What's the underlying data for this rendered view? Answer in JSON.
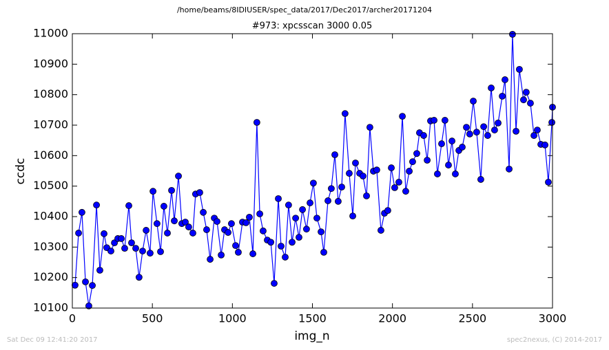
{
  "chart_data": {
    "type": "line",
    "suptitle": "/home/beams/8IDIUSER/spec_data/2017/Dec2017/archer20171204",
    "title": "#973: xpcsscan 3000 0.05",
    "xlabel": "img_n",
    "ylabel": "ccdc",
    "footer_left": "Sat Dec 09 12:41:20 2017",
    "footer_right": "spec2nexus, (C) 2014-2017",
    "xlim": [
      0,
      3000
    ],
    "xticks": [
      0,
      500,
      1000,
      1500,
      2000,
      2500,
      3000
    ],
    "ylim": [
      10100,
      11000
    ],
    "yticks": [
      10100,
      10200,
      10300,
      10400,
      10500,
      10600,
      10700,
      10800,
      10900,
      11000
    ],
    "grid": false,
    "series": [
      {
        "color": "#0000ff",
        "marker": "o",
        "x": [
          17,
          39,
          60,
          82,
          103,
          125,
          151,
          172,
          198,
          215,
          241,
          263,
          284,
          306,
          327,
          353,
          370,
          396,
          417,
          439,
          461,
          486,
          504,
          529,
          551,
          572,
          594,
          620,
          637,
          663,
          684,
          706,
          727,
          753,
          770,
          796,
          818,
          839,
          861,
          887,
          904,
          930,
          951,
          973,
          994,
          1020,
          1037,
          1063,
          1085,
          1106,
          1128,
          1153,
          1171,
          1192,
          1218,
          1240,
          1261,
          1287,
          1304,
          1330,
          1351,
          1373,
          1395,
          1416,
          1438,
          1463,
          1485,
          1506,
          1528,
          1554,
          1571,
          1597,
          1618,
          1640,
          1661,
          1683,
          1704,
          1730,
          1752,
          1769,
          1795,
          1816,
          1838,
          1859,
          1881,
          1902,
          1928,
          1950,
          1971,
          1993,
          2014,
          2040,
          2062,
          2083,
          2105,
          2126,
          2152,
          2169,
          2195,
          2217,
          2238,
          2260,
          2281,
          2307,
          2328,
          2350,
          2372,
          2393,
          2415,
          2436,
          2462,
          2483,
          2505,
          2526,
          2552,
          2570,
          2595,
          2617,
          2638,
          2660,
          2686,
          2703,
          2729,
          2750,
          2772,
          2793,
          2819,
          2836,
          2862,
          2884,
          2905,
          2927,
          2953,
          2974,
          2996,
          3000
        ],
        "values": [
          10175,
          10346,
          10414,
          10186,
          10107,
          10174,
          10438,
          10224,
          10344,
          10298,
          10287,
          10314,
          10328,
          10328,
          10296,
          10436,
          10314,
          10296,
          10201,
          10287,
          10355,
          10280,
          10483,
          10377,
          10285,
          10434,
          10346,
          10486,
          10386,
          10533,
          10377,
          10382,
          10366,
          10346,
          10474,
          10479,
          10414,
          10357,
          10260,
          10395,
          10384,
          10274,
          10357,
          10348,
          10377,
          10305,
          10283,
          10382,
          10380,
          10398,
          10278,
          10709,
          10409,
          10353,
          10323,
          10316,
          10181,
          10459,
          10303,
          10267,
          10438,
          10316,
          10395,
          10332,
          10423,
          10359,
          10445,
          10510,
          10395,
          10350,
          10283,
          10452,
          10492,
          10603,
          10450,
          10497,
          10738,
          10542,
          10402,
          10576,
          10542,
          10533,
          10468,
          10693,
          10549,
          10553,
          10355,
          10411,
          10420,
          10560,
          10495,
          10513,
          10729,
          10483,
          10549,
          10580,
          10607,
          10675,
          10666,
          10585,
          10714,
          10716,
          10540,
          10639,
          10716,
          10569,
          10648,
          10540,
          10617,
          10628,
          10693,
          10671,
          10779,
          10677,
          10522,
          10695,
          10666,
          10822,
          10684,
          10707,
          10795,
          10849,
          10556,
          10998,
          10680,
          10883,
          10783,
          10808,
          10772,
          10666,
          10684,
          10637,
          10635,
          10513,
          10709,
          10759
        ]
      }
    ]
  }
}
